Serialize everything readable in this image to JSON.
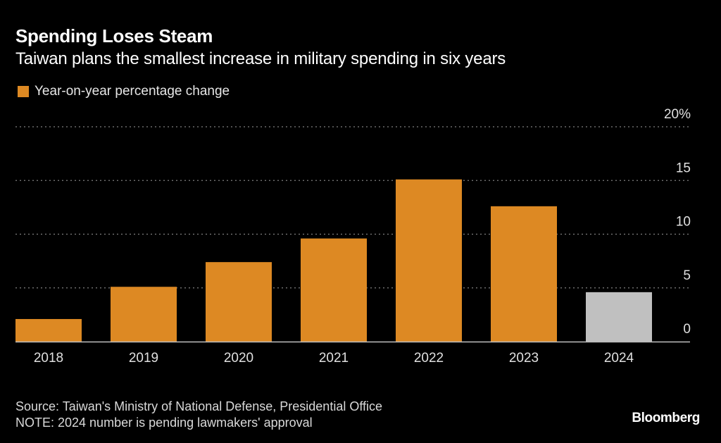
{
  "title": "Spending Loses Steam",
  "subtitle": "Taiwan plans the smallest increase in military spending in six years",
  "legend": {
    "label": "Year-on-year percentage change",
    "color": "#dd8923"
  },
  "footer": {
    "source": "Source: Taiwan's Ministry of National Defense, Presidential Office",
    "note": "NOTE: 2024 number is pending lawmakers' approval"
  },
  "brand": "Bloomberg",
  "colors": {
    "primary": "#dd8923",
    "pending": "#c0c0c0",
    "background": "#000000",
    "grid": "#808080",
    "axis": "#bfbfbf"
  },
  "chart_data": {
    "type": "bar",
    "title": "Spending Loses Steam",
    "subtitle": "Taiwan plans the smallest increase in military spending in six years",
    "xlabel": "",
    "ylabel": "Year-on-year percentage change",
    "categories": [
      "2018",
      "2019",
      "2020",
      "2021",
      "2022",
      "2023",
      "2024"
    ],
    "series": [
      {
        "name": "Year-on-year percentage change",
        "values": [
          2.1,
          5.1,
          7.4,
          9.6,
          15.1,
          12.6,
          4.6
        ]
      }
    ],
    "highlight": {
      "2024": "pending"
    },
    "ylim": [
      0,
      20
    ],
    "yticks": [
      0,
      5,
      10,
      15,
      20
    ],
    "ytick_labels": [
      "0",
      "5",
      "10",
      "15",
      "20%"
    ],
    "yaxis_position": "right",
    "grid": true,
    "legend_position": "top-left"
  }
}
